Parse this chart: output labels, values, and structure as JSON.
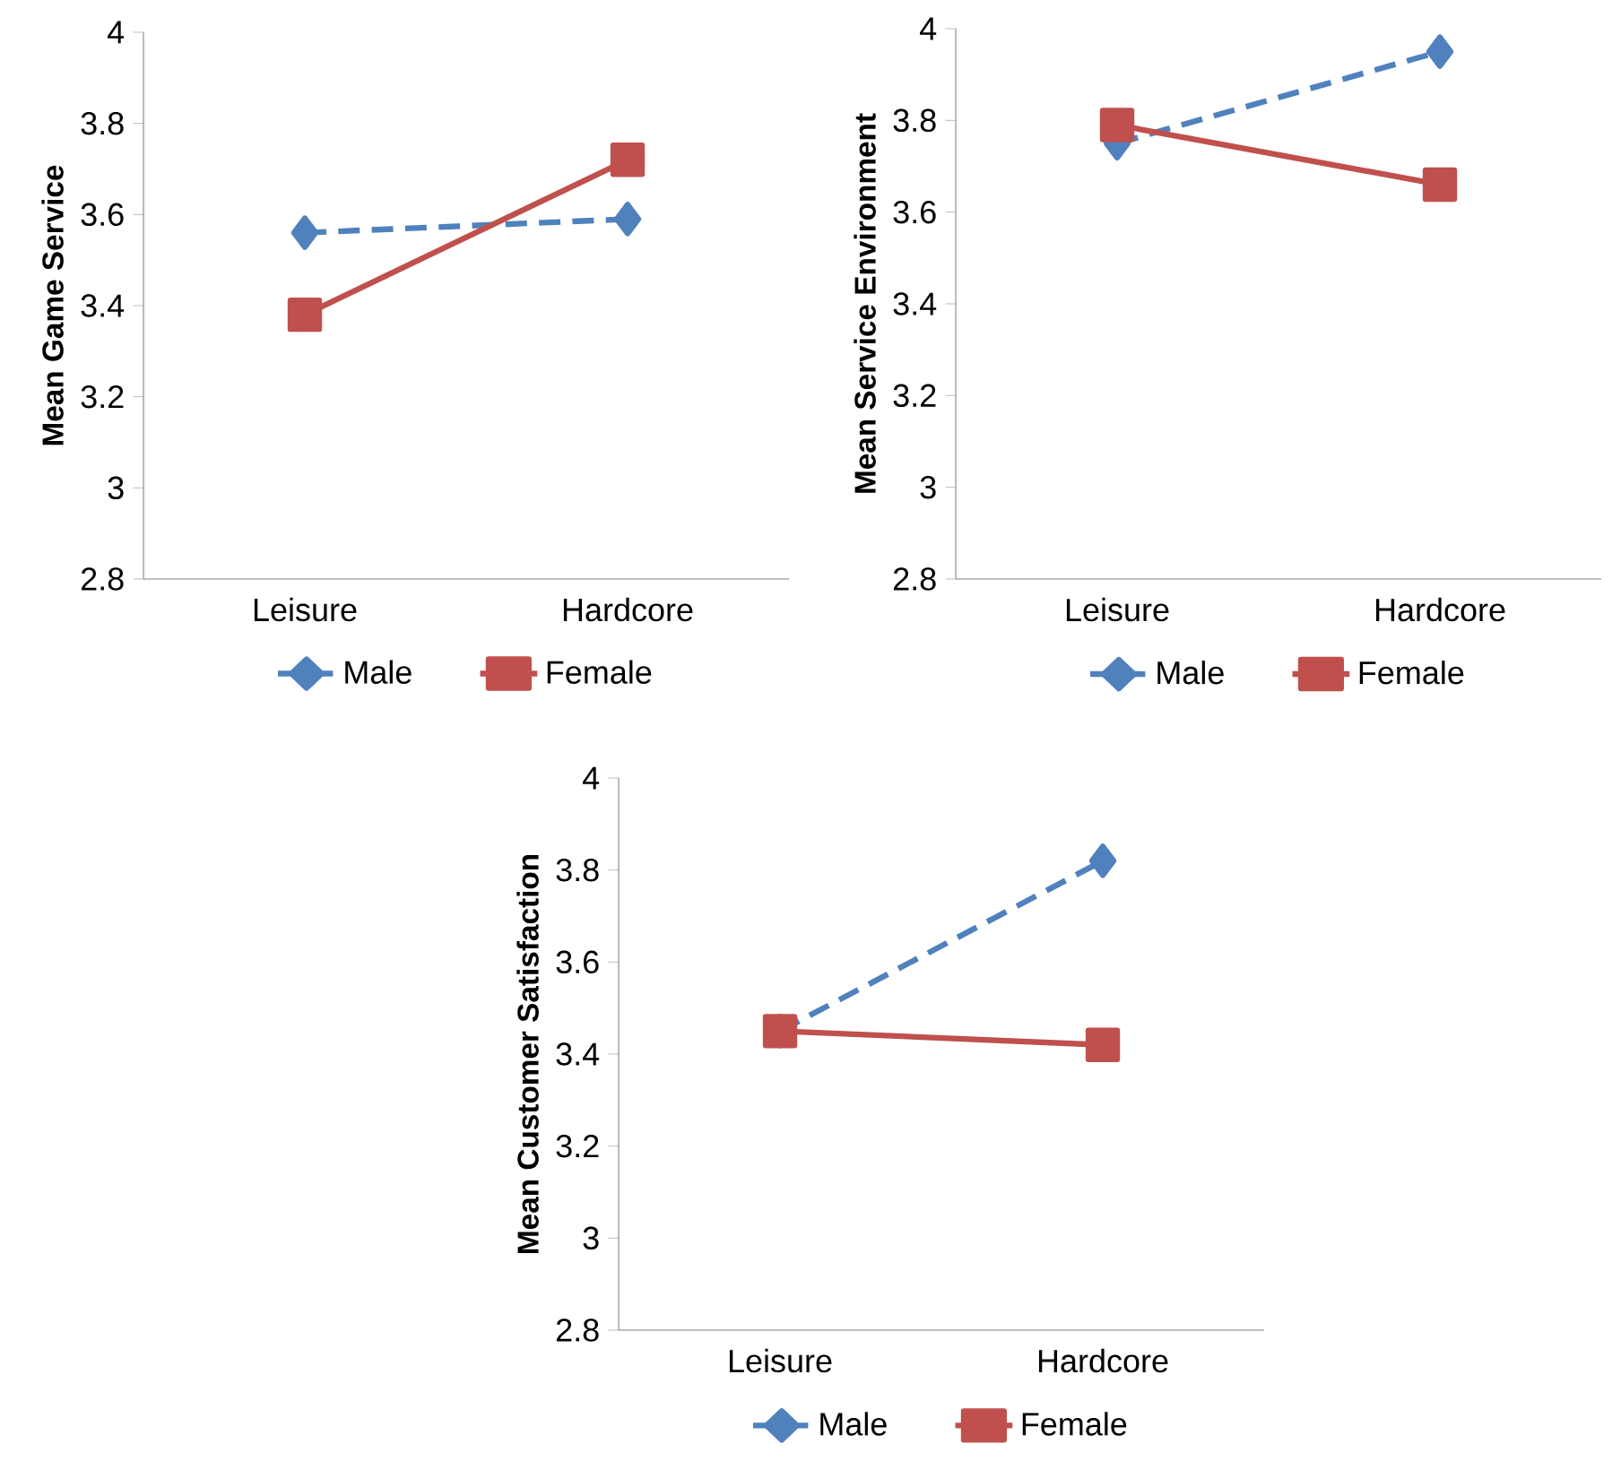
{
  "chart_data": [
    {
      "type": "line",
      "categories": [
        "Leisure",
        "Hardcore"
      ],
      "ylabel": "Mean Game Service",
      "ylim": [
        2.8,
        4
      ],
      "yticks": [
        2.8,
        3,
        3.2,
        3.4,
        3.6,
        3.8,
        4
      ],
      "legend": "bottom",
      "series": [
        {
          "name": "Male",
          "color": "#4f81bd",
          "values": [
            3.56,
            3.59
          ],
          "marker": "diamond",
          "line_style": "dashed"
        },
        {
          "name": "Female",
          "color": "#c0504d",
          "values": [
            3.38,
            3.72
          ],
          "marker": "square",
          "line_style": "solid"
        }
      ]
    },
    {
      "type": "line",
      "categories": [
        "Leisure",
        "Hardcore"
      ],
      "ylabel": "Mean Service Environment",
      "ylim": [
        2.8,
        4
      ],
      "yticks": [
        2.8,
        3,
        3.2,
        3.4,
        3.6,
        3.8,
        4
      ],
      "legend": "bottom",
      "series": [
        {
          "name": "Male",
          "color": "#4f81bd",
          "values": [
            3.75,
            3.95
          ],
          "marker": "diamond",
          "line_style": "dashed"
        },
        {
          "name": "Female",
          "color": "#c0504d",
          "values": [
            3.79,
            3.66
          ],
          "marker": "square",
          "line_style": "solid"
        }
      ]
    },
    {
      "type": "line",
      "categories": [
        "Leisure",
        "Hardcore"
      ],
      "ylabel": "Mean Customer Satisfaction",
      "ylim": [
        2.8,
        4
      ],
      "yticks": [
        2.8,
        3,
        3.2,
        3.4,
        3.6,
        3.8,
        4
      ],
      "legend": "bottom",
      "series": [
        {
          "name": "Male",
          "color": "#4f81bd",
          "values": [
            3.45,
            3.82
          ],
          "marker": "diamond",
          "line_style": "dashed"
        },
        {
          "name": "Female",
          "color": "#c0504d",
          "values": [
            3.45,
            3.42
          ],
          "marker": "square",
          "line_style": "solid"
        }
      ]
    }
  ]
}
